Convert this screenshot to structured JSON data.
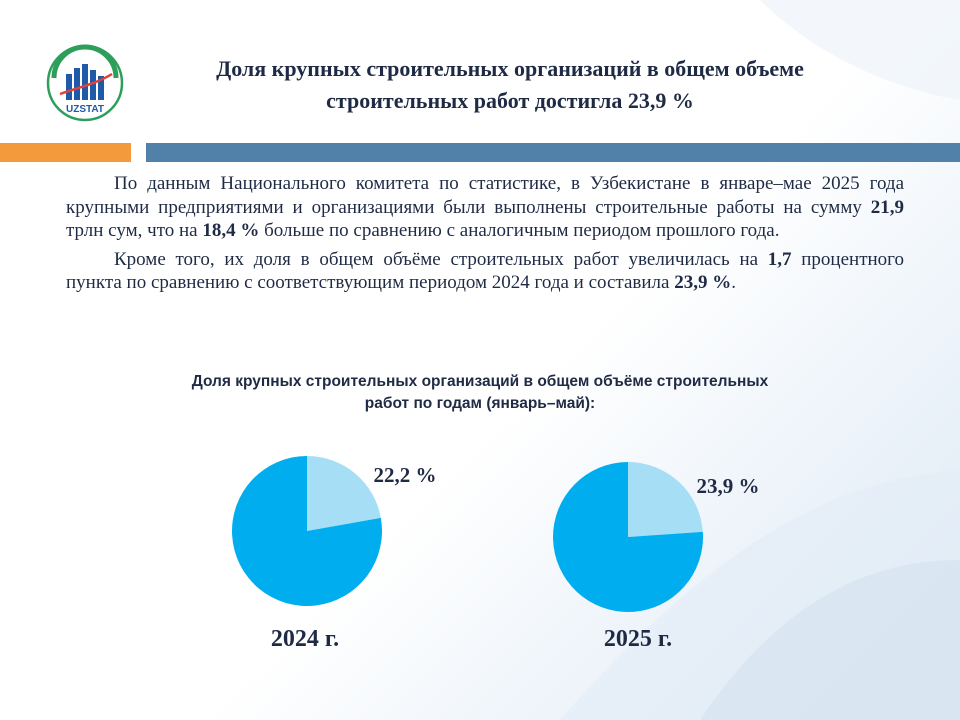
{
  "logo": {
    "text": "UZSTAT"
  },
  "header": {
    "title_line1": "Доля крупных строительных организаций в общем объеме",
    "title_line2": "строительных работ достигла 23,9 %"
  },
  "body": {
    "p1_a": "По данным Национального комитета по статистике, в Узбекистане в январе–мае 2025 года крупными предприятиями и организациями были выполнены строительные работы на сумму ",
    "p1_b": "21,9",
    "p1_c": " трлн сум, что на ",
    "p1_d": "18,4 %",
    "p1_e": " больше по сравнению с аналогичным периодом прошлого года.",
    "p2_a": "Кроме того, их доля в общем объёме строительных работ увеличилась на ",
    "p2_b": "1,7",
    "p2_c": " процентного пункта по сравнению с соответствующим периодом 2024 года и составила ",
    "p2_d": "23,9 %",
    "p2_e": "."
  },
  "chart_data": [
    {
      "type": "pie",
      "title": "Доля крупных строительных организаций в общем объёме строительных работ по годам (январь–май):",
      "category": "2024 г.",
      "slices": [
        {
          "value": 22.2,
          "label": "22,2 %",
          "color": "#a6def5"
        },
        {
          "value": 77.8,
          "label": "",
          "color": "#00aeef"
        }
      ]
    },
    {
      "type": "pie",
      "category": "2025 г.",
      "slices": [
        {
          "value": 23.9,
          "label": "23,9 %",
          "color": "#a6def5"
        },
        {
          "value": 76.1,
          "label": "",
          "color": "#00aeef"
        }
      ]
    }
  ],
  "chart_title_line1": "Доля крупных  строительных  организаций в общем объёме строительных",
  "chart_title_line2": "работ по годам (январь–май):",
  "colors": {
    "accent_orange": "#f39a3c",
    "accent_blue": "#5180a8",
    "pie_main": "#00aeef",
    "pie_share": "#a6def5"
  }
}
